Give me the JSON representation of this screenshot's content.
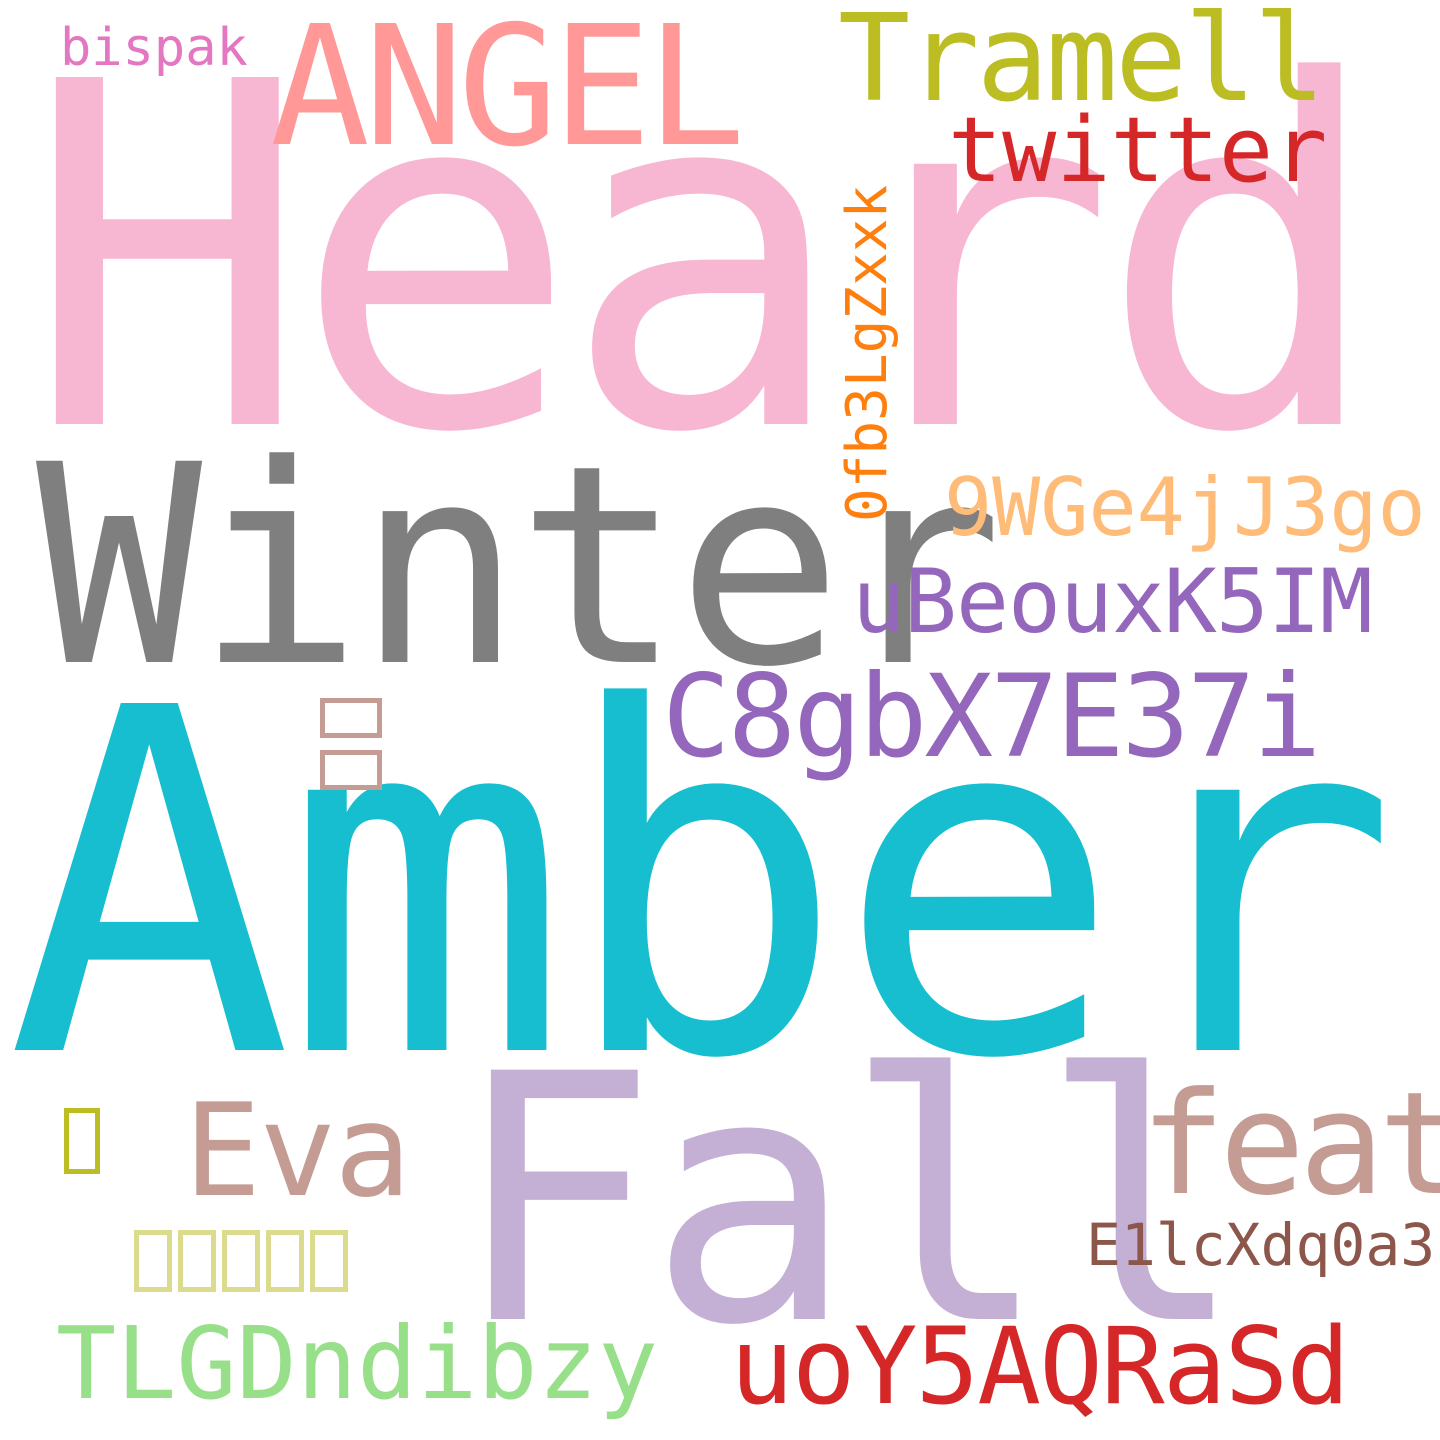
{
  "words": [
    {
      "name": "word-heard",
      "text": "Heard",
      "color": "#f7b6d2"
    },
    {
      "name": "word-amber",
      "text": "Amber",
      "color": "#17becf"
    },
    {
      "name": "word-winter",
      "text": "Winter",
      "color": "#7f7f7f"
    },
    {
      "name": "word-fall",
      "text": "Fall",
      "color": "#c5b0d5"
    },
    {
      "name": "word-angel",
      "text": "ANGEL",
      "color": "#ff9896"
    },
    {
      "name": "word-tramell",
      "text": "Tramell",
      "color": "#bcbd22"
    },
    {
      "name": "word-twitter",
      "text": "twitter",
      "color": "#d62728"
    },
    {
      "name": "word-bispak",
      "text": "bispak",
      "color": "#e377c2"
    },
    {
      "name": "word-0fb3lgzxxk",
      "text": "0fb3LgZxxk",
      "color": "#ff7f0e"
    },
    {
      "name": "word-9wge4jj3go",
      "text": "9WGe4jJ3go",
      "color": "#ffbb78"
    },
    {
      "name": "word-ubeouxk5im",
      "text": "uBeouxK5IM",
      "color": "#9467bd"
    },
    {
      "name": "word-c8gbx7e37i",
      "text": "C8gbX7E37i",
      "color": "#9467bd"
    },
    {
      "name": "word-eva",
      "text": "Eva",
      "color": "#c49c94"
    },
    {
      "name": "word-feat",
      "text": "feat",
      "color": "#c49c94"
    },
    {
      "name": "word-e1lcxdqoa3",
      "text": "E1lcXdq0a3",
      "color": "#8c564b"
    },
    {
      "name": "word-tlgdndibzy",
      "text": "TLGDndibzy",
      "color": "#98df8a"
    },
    {
      "name": "word-uoy5aqrasd",
      "text": "uoY5AQRaSd",
      "color": "#d62728"
    }
  ],
  "glyph_boxes": [
    {
      "name": "glyph-box-rotated-pink-brown",
      "color": "#c49c94"
    },
    {
      "name": "glyph-box-olive",
      "color": "#bcbd22"
    },
    {
      "name": "glyph-box-row-yellow",
      "color": "#dbdb8d"
    }
  ]
}
